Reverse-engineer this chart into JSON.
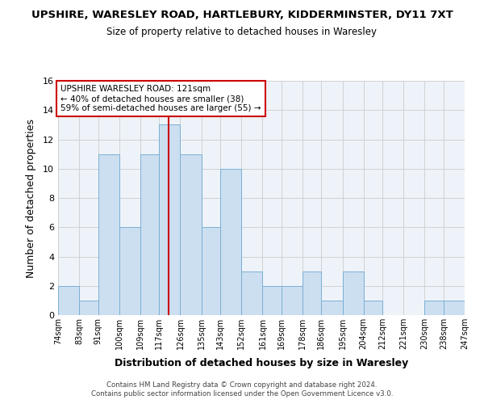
{
  "title": "UPSHIRE, WARESLEY ROAD, HARTLEBURY, KIDDERMINSTER, DY11 7XT",
  "subtitle": "Size of property relative to detached houses in Waresley",
  "xlabel": "Distribution of detached houses by size in Waresley",
  "ylabel": "Number of detached properties",
  "bar_color": "#ccdff0",
  "bar_edge_color": "#7aafd4",
  "grid_color": "#cccccc",
  "annotation_box_edge": "#cc0000",
  "vline_color": "#cc0000",
  "vline_x": 121,
  "annotation_lines": [
    "UPSHIRE WARESLEY ROAD: 121sqm",
    "← 40% of detached houses are smaller (38)",
    "59% of semi-detached houses are larger (55) →"
  ],
  "bin_edges": [
    74,
    83,
    91,
    100,
    109,
    117,
    126,
    135,
    143,
    152,
    161,
    169,
    178,
    186,
    195,
    204,
    212,
    221,
    230,
    238,
    247
  ],
  "bin_counts": [
    2,
    1,
    11,
    6,
    11,
    13,
    11,
    6,
    10,
    3,
    2,
    2,
    3,
    1,
    3,
    1,
    0,
    0,
    1,
    1
  ],
  "tick_labels": [
    "74sqm",
    "83sqm",
    "91sqm",
    "100sqm",
    "109sqm",
    "117sqm",
    "126sqm",
    "135sqm",
    "143sqm",
    "152sqm",
    "161sqm",
    "169sqm",
    "178sqm",
    "186sqm",
    "195sqm",
    "204sqm",
    "212sqm",
    "221sqm",
    "230sqm",
    "238sqm",
    "247sqm"
  ],
  "ylim": [
    0,
    16
  ],
  "yticks": [
    0,
    2,
    4,
    6,
    8,
    10,
    12,
    14,
    16
  ],
  "footer1": "Contains HM Land Registry data © Crown copyright and database right 2024.",
  "footer2": "Contains public sector information licensed under the Open Government Licence v3.0.",
  "bg_color": "#ffffff",
  "plot_bg_color": "#eef3f9"
}
